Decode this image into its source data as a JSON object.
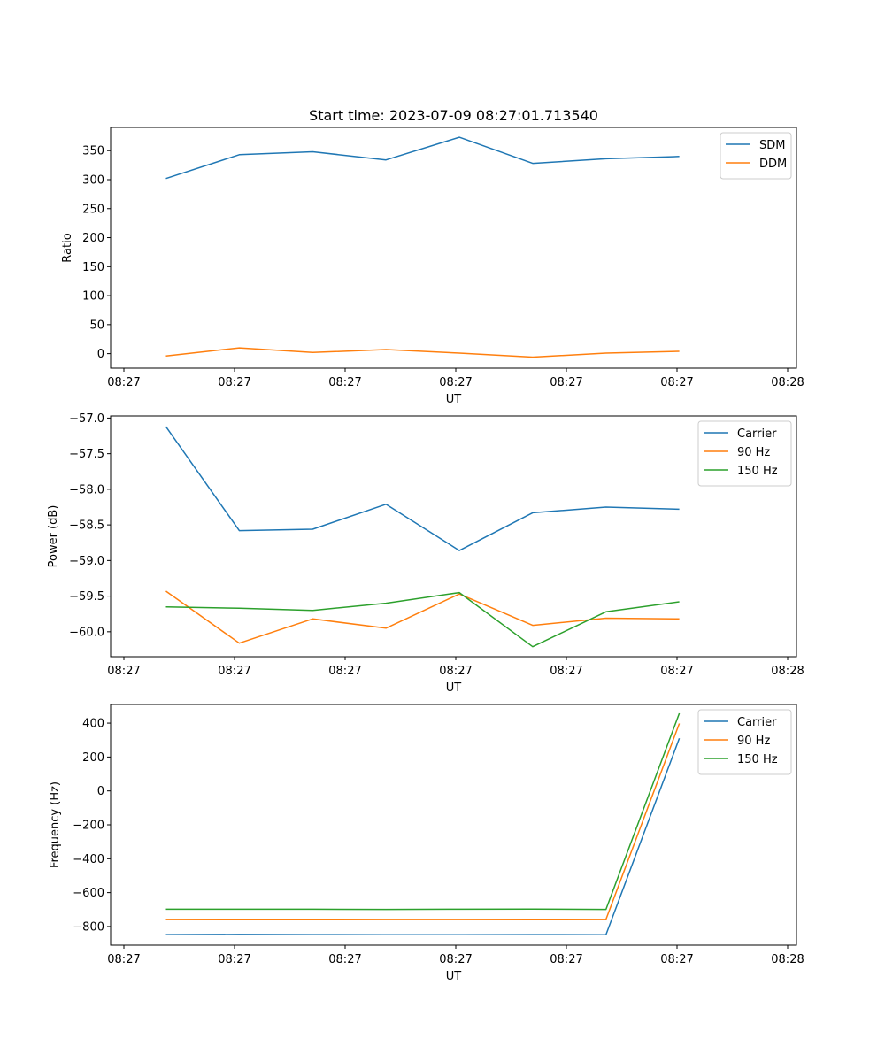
{
  "chart_data": [
    {
      "type": "line",
      "title": "Start time: 2023-07-09 08:27:01.713540",
      "xlabel": "UT",
      "ylabel": "Ratio",
      "legend_position": "top-right",
      "x": [
        0.5,
        1.163,
        1.826,
        2.489,
        3.152,
        3.815,
        4.478,
        5.141
      ],
      "xlim": [
        0.0,
        6.2
      ],
      "x_ticks": [
        0.12,
        1.12,
        2.12,
        3.12,
        4.12,
        5.12,
        6.12
      ],
      "x_tick_labels": [
        "08:27",
        "08:27",
        "08:27",
        "08:27",
        "08:27",
        "08:27",
        "08:28"
      ],
      "ylim": [
        -25,
        390
      ],
      "y_ticks": [
        0,
        50,
        100,
        150,
        200,
        250,
        300,
        350
      ],
      "series": [
        {
          "name": "SDM",
          "color": "#1f77b4",
          "values": [
            302,
            343,
            348,
            334,
            373,
            328,
            336,
            340
          ]
        },
        {
          "name": "DDM",
          "color": "#ff7f0e",
          "values": [
            -4,
            10,
            2,
            7,
            1,
            -6,
            1,
            4
          ]
        }
      ]
    },
    {
      "type": "line",
      "title": "",
      "xlabel": "UT",
      "ylabel": "Power (dB)",
      "legend_position": "top-right",
      "x": [
        0.5,
        1.163,
        1.826,
        2.489,
        3.152,
        3.815,
        4.478,
        5.141
      ],
      "xlim": [
        0.0,
        6.2
      ],
      "x_ticks": [
        0.12,
        1.12,
        2.12,
        3.12,
        4.12,
        5.12,
        6.12
      ],
      "x_tick_labels": [
        "08:27",
        "08:27",
        "08:27",
        "08:27",
        "08:27",
        "08:27",
        "08:28"
      ],
      "ylim": [
        -60.35,
        -56.97
      ],
      "y_ticks": [
        -60.0,
        -59.5,
        -59.0,
        -58.5,
        -58.0,
        -57.5,
        -57.0
      ],
      "y_tick_labels": [
        "−60.0",
        "−59.5",
        "−59.0",
        "−58.5",
        "−58.0",
        "−57.5",
        "−57.0"
      ],
      "series": [
        {
          "name": "Carrier",
          "color": "#1f77b4",
          "values": [
            -57.12,
            -58.58,
            -58.56,
            -58.21,
            -58.86,
            -58.33,
            -58.25,
            -58.28
          ]
        },
        {
          "name": "90 Hz",
          "color": "#ff7f0e",
          "values": [
            -59.43,
            -60.16,
            -59.82,
            -59.95,
            -59.47,
            -59.91,
            -59.81,
            -59.82
          ]
        },
        {
          "name": "150 Hz",
          "color": "#2ca02c",
          "values": [
            -59.65,
            -59.67,
            -59.7,
            -59.6,
            -59.45,
            -60.21,
            -59.72,
            -59.58
          ]
        }
      ]
    },
    {
      "type": "line",
      "title": "",
      "xlabel": "UT",
      "ylabel": "Frequency (Hz)",
      "legend_position": "top-right",
      "x": [
        0.5,
        1.163,
        1.826,
        2.489,
        3.152,
        3.815,
        4.478,
        5.141
      ],
      "xlim": [
        0.0,
        6.2
      ],
      "x_ticks": [
        0.12,
        1.12,
        2.12,
        3.12,
        4.12,
        5.12,
        6.12
      ],
      "x_tick_labels": [
        "08:27",
        "08:27",
        "08:27",
        "08:27",
        "08:27",
        "08:27",
        "08:28"
      ],
      "ylim": [
        -910,
        510
      ],
      "y_ticks": [
        -800,
        -600,
        -400,
        -200,
        0,
        200,
        400
      ],
      "y_tick_labels": [
        "−800",
        "−600",
        "−400",
        "−200",
        "0",
        "200",
        "400"
      ],
      "series": [
        {
          "name": "Carrier",
          "color": "#1f77b4",
          "values": [
            -848,
            -847,
            -848,
            -849,
            -849,
            -848,
            -849,
            310
          ]
        },
        {
          "name": "90 Hz",
          "color": "#ff7f0e",
          "values": [
            -758,
            -757,
            -757,
            -758,
            -758,
            -757,
            -758,
            398
          ]
        },
        {
          "name": "150 Hz",
          "color": "#2ca02c",
          "values": [
            -698,
            -698,
            -698,
            -699,
            -698,
            -697,
            -699,
            458
          ]
        }
      ]
    }
  ]
}
